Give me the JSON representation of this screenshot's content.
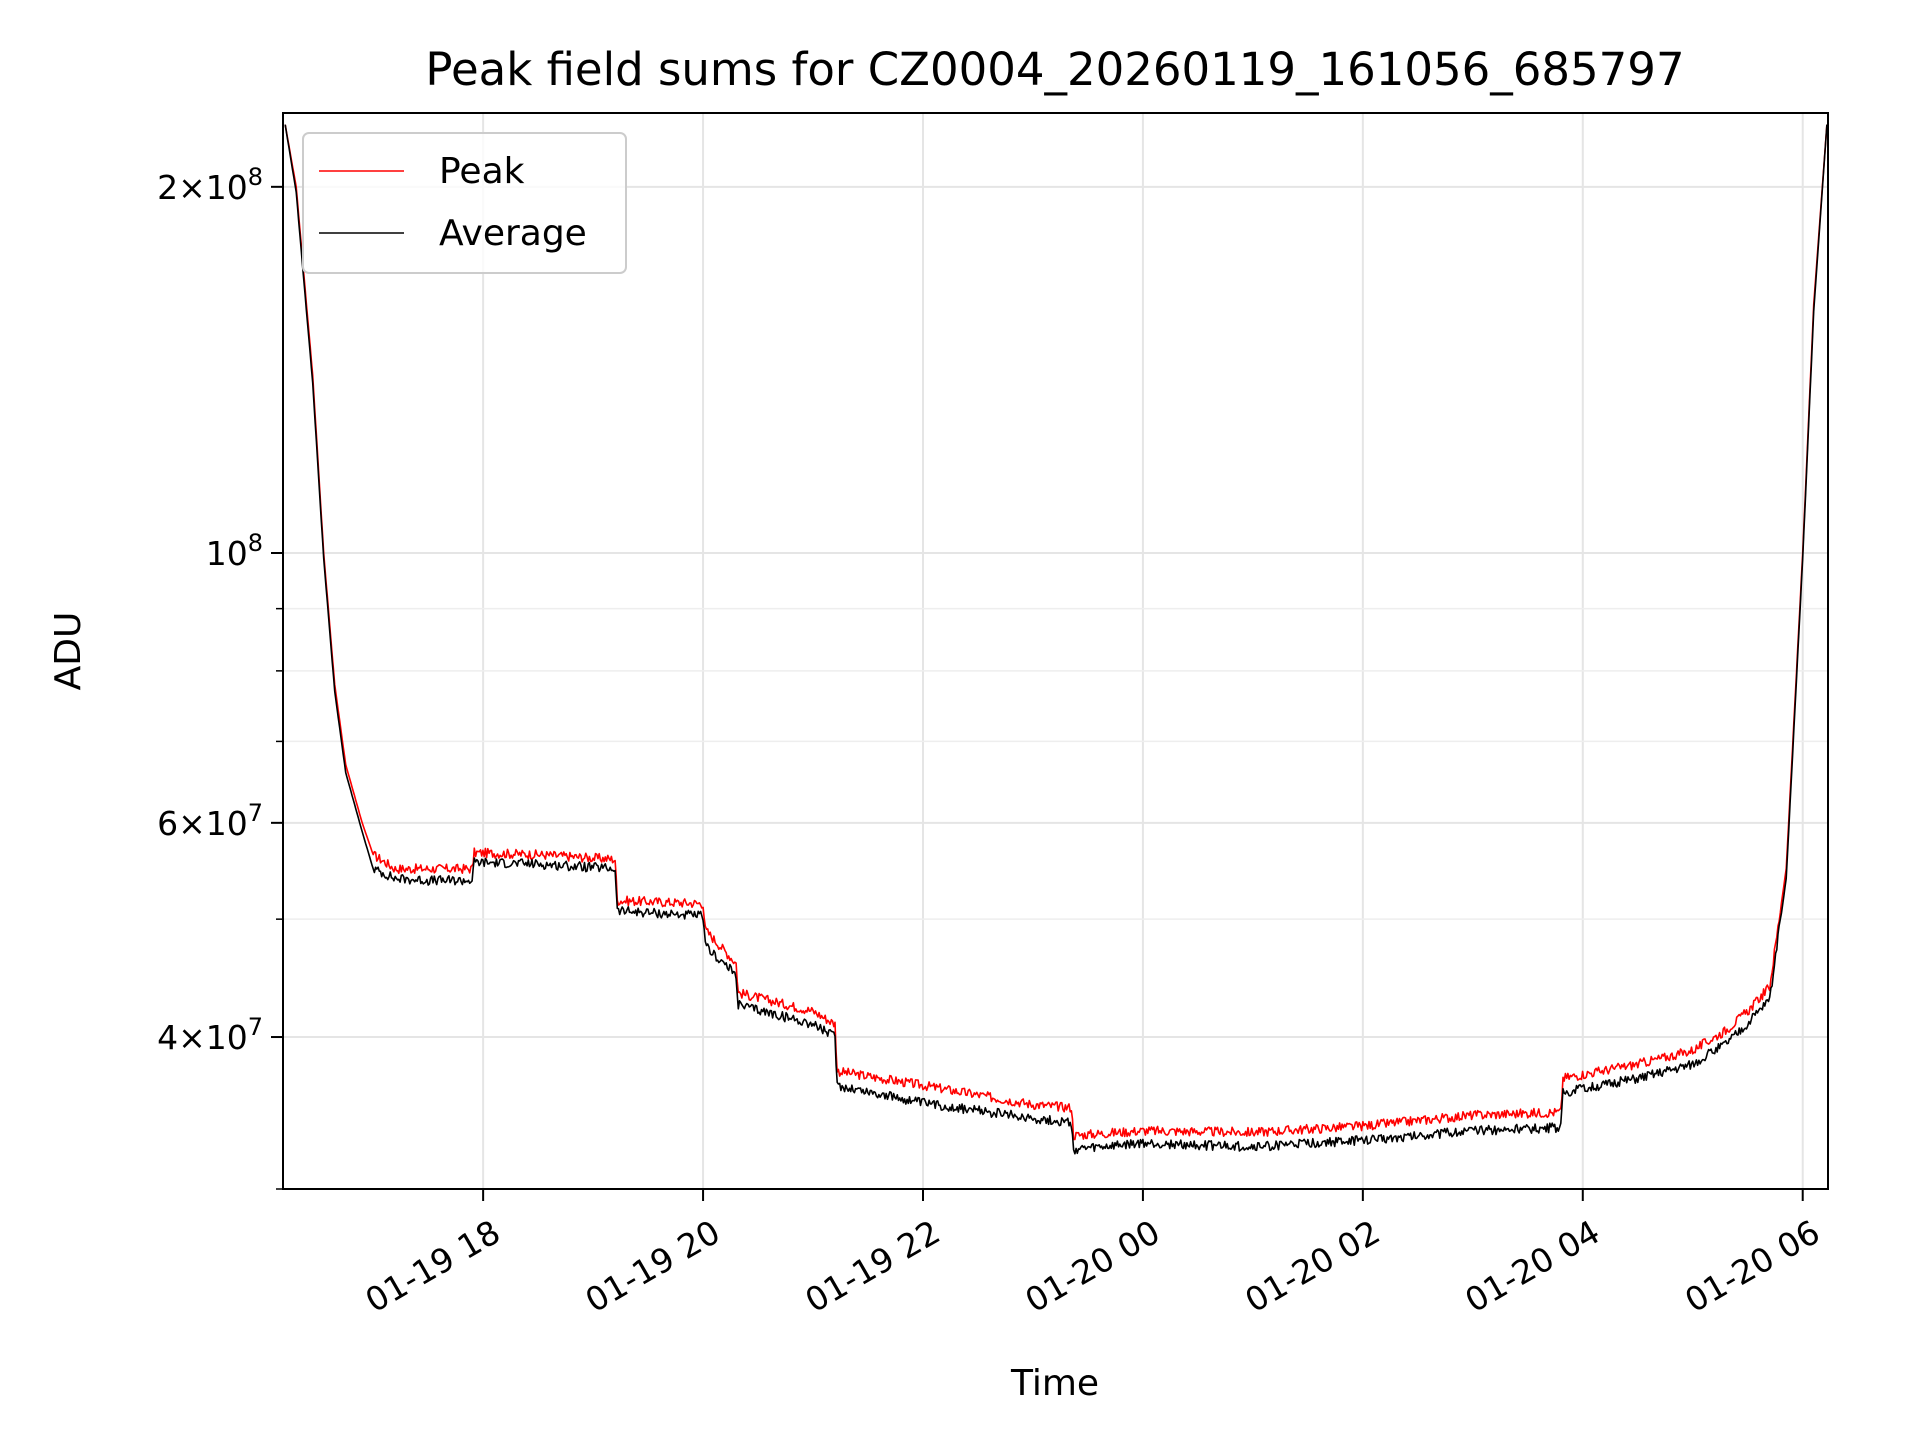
{
  "chart_data": {
    "type": "line",
    "title": "Peak field sums for CZ0004_20260119_161056_685797",
    "xlabel": "Time",
    "ylabel": "ADU",
    "yscale": "log",
    "ylim": [
      30000000,
      230000000
    ],
    "xlim_hours": [
      16.18,
      30.23
    ],
    "grid": true,
    "legend_location": "upper left",
    "x_ticks": [
      {
        "hour": 18,
        "label": "01-19 18"
      },
      {
        "hour": 20,
        "label": "01-19 20"
      },
      {
        "hour": 22,
        "label": "01-19 22"
      },
      {
        "hour": 24,
        "label": "01-20 00"
      },
      {
        "hour": 26,
        "label": "01-20 02"
      },
      {
        "hour": 28,
        "label": "01-20 04"
      },
      {
        "hour": 30,
        "label": "01-20 06"
      }
    ],
    "y_major_ticks": [
      {
        "value": 40000000,
        "mant": "4",
        "exp": "7"
      },
      {
        "value": 60000000,
        "mant": "6",
        "exp": "7"
      },
      {
        "value": 100000000,
        "mant": "",
        "exp": "8"
      },
      {
        "value": 200000000,
        "mant": "2",
        "exp": "8"
      }
    ],
    "y_minor_ticks": [
      30000000,
      50000000,
      70000000,
      80000000,
      90000000
    ],
    "series": [
      {
        "name": "Peak",
        "color": "#ff0000",
        "x": [
          16.2,
          16.3,
          16.45,
          16.55,
          16.65,
          16.75,
          16.9,
          17.0,
          17.2,
          17.5,
          17.9,
          17.92,
          18.5,
          19.2,
          19.22,
          20.0,
          20.02,
          20.3,
          20.32,
          21.0,
          21.2,
          21.22,
          22.0,
          23.0,
          23.35,
          23.37,
          24.0,
          25.0,
          26.0,
          27.0,
          27.8,
          27.82,
          28.5,
          29.0,
          29.3,
          29.5,
          29.7,
          29.85,
          30.0,
          30.1,
          30.22
        ],
        "y": [
          225000000,
          200000000,
          140000000,
          100000000,
          78000000,
          67000000,
          60000000,
          56500000,
          55000000,
          55000000,
          55000000,
          56700000,
          56500000,
          56000000,
          51800000,
          51500000,
          49000000,
          46000000,
          43500000,
          42000000,
          41000000,
          37500000,
          36500000,
          35200000,
          35000000,
          33200000,
          33500000,
          33400000,
          33800000,
          34500000,
          34700000,
          37000000,
          38000000,
          39000000,
          40500000,
          42000000,
          44000000,
          55000000,
          100000000,
          160000000,
          225000000
        ]
      },
      {
        "name": "Average",
        "color": "#000000",
        "x": [
          16.2,
          16.3,
          16.45,
          16.55,
          16.65,
          16.75,
          16.9,
          17.0,
          17.2,
          17.5,
          17.9,
          17.92,
          18.5,
          19.2,
          19.22,
          20.0,
          20.02,
          20.3,
          20.32,
          21.0,
          21.2,
          21.22,
          22.0,
          23.0,
          23.35,
          23.37,
          24.0,
          25.0,
          26.0,
          27.0,
          27.8,
          27.82,
          28.5,
          29.0,
          29.3,
          29.5,
          29.7,
          29.85,
          30.0,
          30.1,
          30.22
        ],
        "y": [
          225000000,
          198000000,
          138000000,
          99000000,
          77000000,
          66000000,
          59000000,
          55000000,
          54000000,
          53800000,
          53800000,
          55700000,
          55500000,
          55000000,
          50800000,
          50300000,
          47500000,
          45000000,
          42500000,
          41000000,
          40000000,
          36500000,
          35300000,
          34300000,
          34000000,
          32300000,
          32700000,
          32500000,
          32900000,
          33500000,
          33700000,
          36000000,
          37000000,
          38000000,
          39500000,
          41000000,
          43000000,
          54000000,
          99000000,
          158000000,
          225000000
        ]
      }
    ]
  }
}
